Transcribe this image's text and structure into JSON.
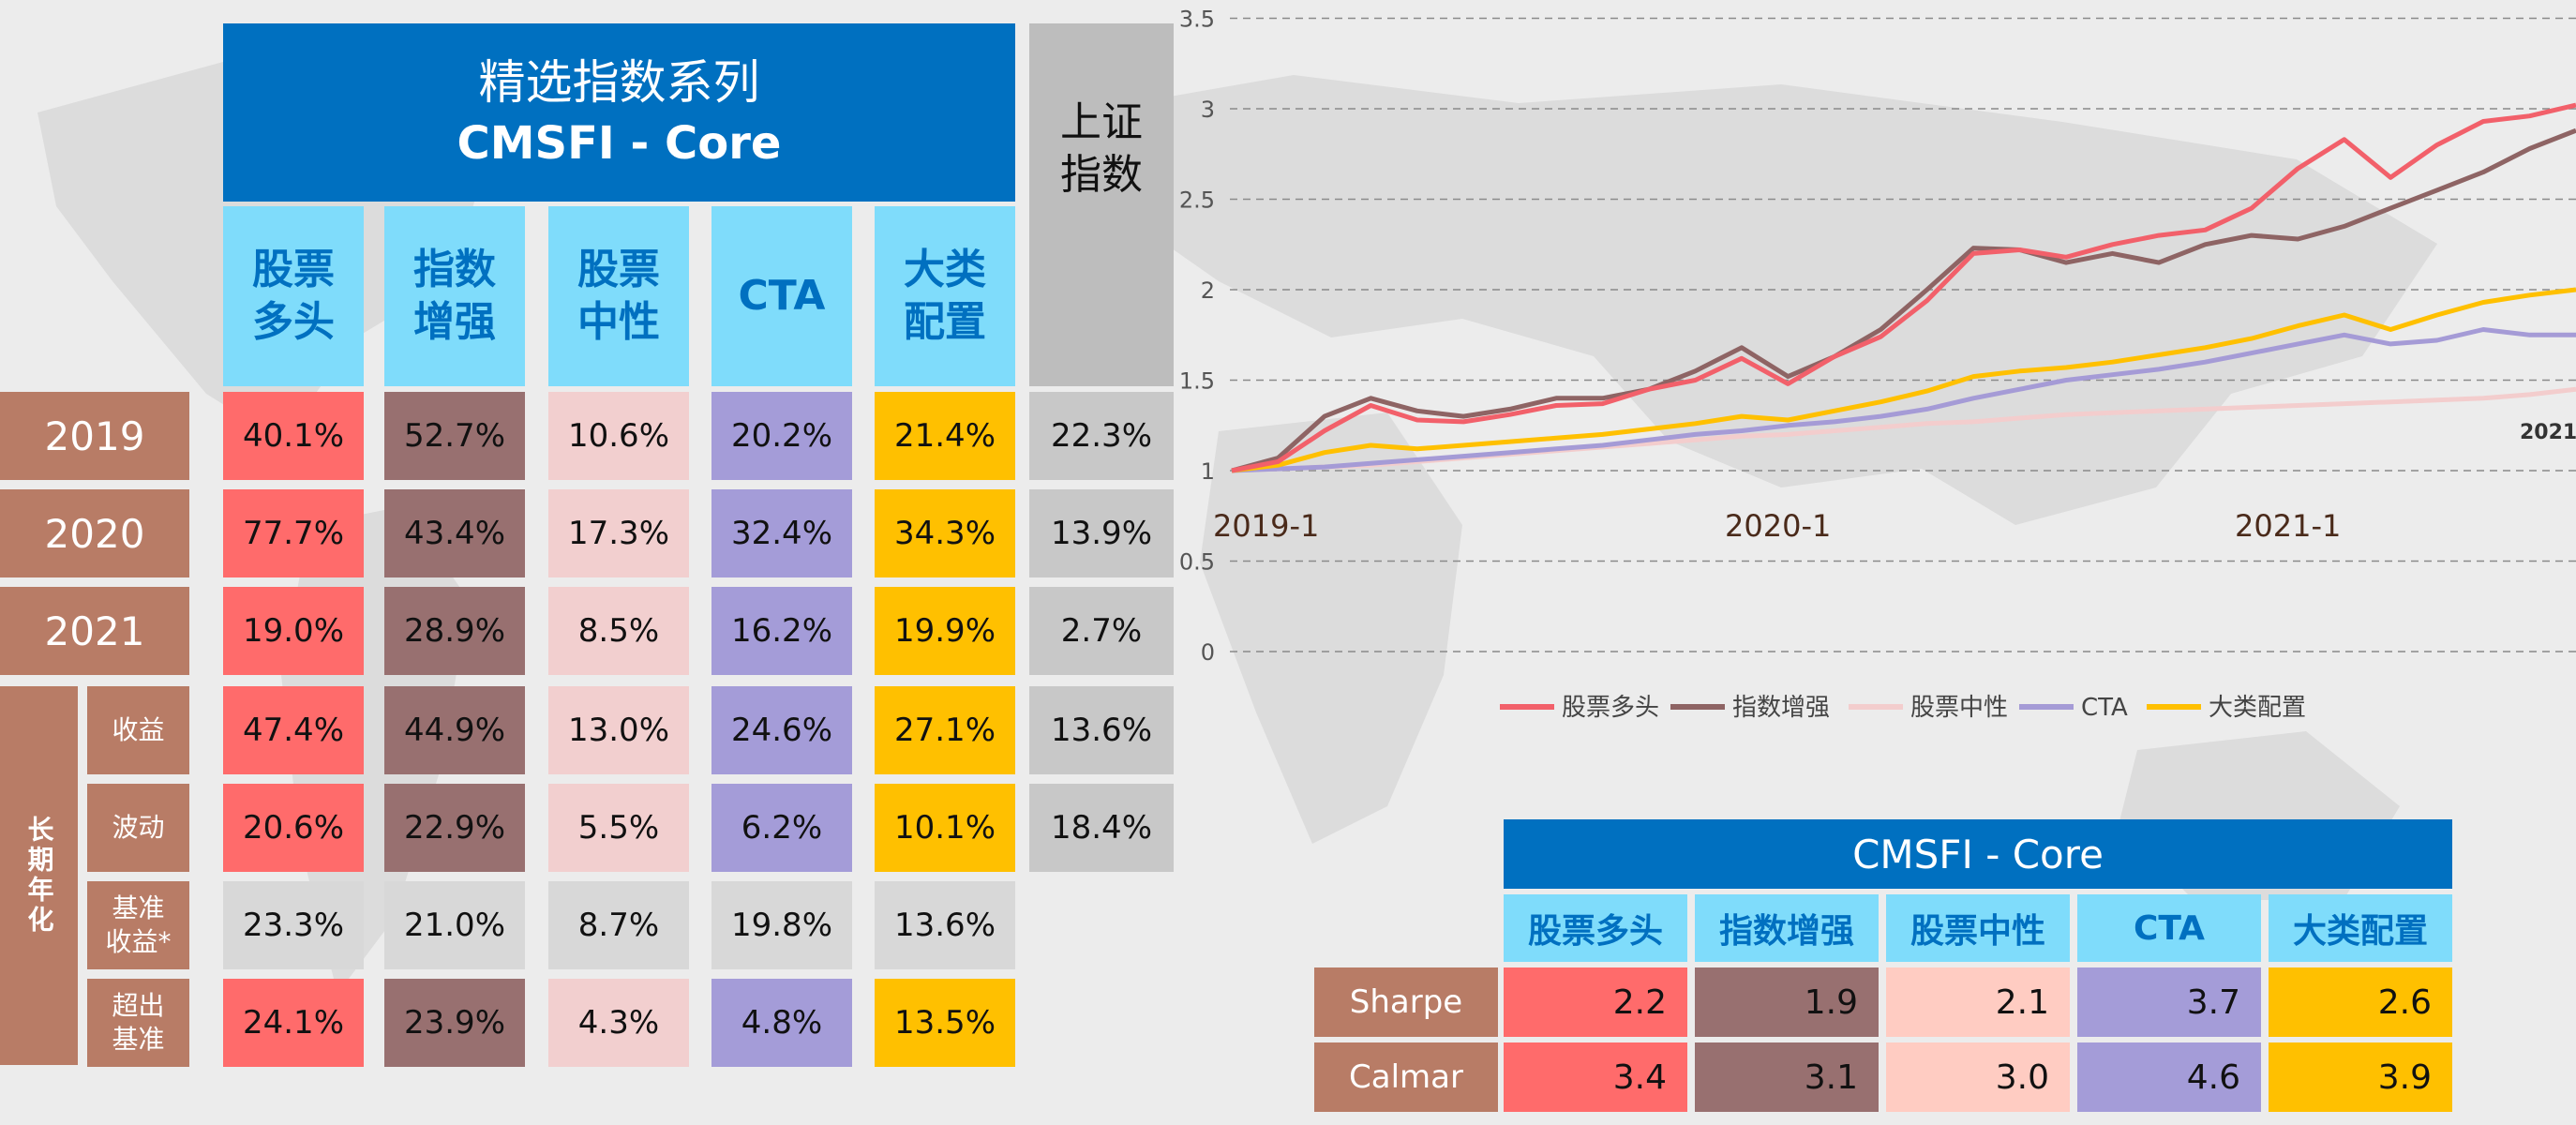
{
  "left_table": {
    "title_line1": "精选指数系列",
    "title_line2": "CMSFI - Core",
    "benchmark_header": [
      "上证",
      "指数"
    ],
    "col_headers": [
      [
        "股票",
        "多头"
      ],
      [
        "指数",
        "增强"
      ],
      [
        "股票",
        "中性"
      ],
      [
        "CTA"
      ],
      [
        "大类",
        "配置"
      ]
    ],
    "group_label": "长期年化",
    "rows": [
      {
        "label": [
          "2019"
        ],
        "values": [
          "40.1%",
          "52.7%",
          "10.6%",
          "20.2%",
          "21.4%"
        ],
        "benchmark": "22.3%"
      },
      {
        "label": [
          "2020"
        ],
        "values": [
          "77.7%",
          "43.4%",
          "17.3%",
          "32.4%",
          "34.3%"
        ],
        "benchmark": "13.9%"
      },
      {
        "label": [
          "2021"
        ],
        "values": [
          "19.0%",
          "28.9%",
          "8.5%",
          "16.2%",
          "19.9%"
        ],
        "benchmark": "2.7%"
      },
      {
        "label": [
          "收益"
        ],
        "values": [
          "47.4%",
          "44.9%",
          "13.0%",
          "24.6%",
          "27.1%"
        ],
        "benchmark": "13.6%"
      },
      {
        "label": [
          "波动"
        ],
        "values": [
          "20.6%",
          "22.9%",
          "5.5%",
          "6.2%",
          "10.1%"
        ],
        "benchmark": "18.4%"
      },
      {
        "label": [
          "基准",
          "收益*"
        ],
        "values": [
          "23.3%",
          "21.0%",
          "8.7%",
          "19.8%",
          "13.6%"
        ],
        "benchmark": ""
      },
      {
        "label": [
          "超出",
          "基准"
        ],
        "values": [
          "24.1%",
          "23.9%",
          "4.3%",
          "4.8%",
          "13.5%"
        ],
        "benchmark": ""
      }
    ]
  },
  "chart_data": {
    "type": "line",
    "title": "",
    "xlabel": "",
    "ylabel": "",
    "ylim": [
      0,
      3.5
    ],
    "yticks": [
      "0",
      "0.5",
      "1",
      "1.5",
      "2",
      "2.5",
      "3",
      "3.5"
    ],
    "x_tick_labels": [
      "2019-1",
      "2020-1",
      "2021-1",
      "2021"
    ],
    "x": [
      0,
      1,
      2,
      3,
      4,
      5,
      6,
      7,
      8,
      9,
      10,
      11,
      12,
      13,
      14,
      15,
      16,
      17,
      18,
      19,
      20,
      21,
      22,
      23,
      24,
      25,
      26,
      27,
      28,
      29
    ],
    "grid": "horizontal dashed",
    "legend_position": "bottom",
    "series": [
      {
        "name": "股票多头",
        "color": "#f2606a",
        "values": [
          1.0,
          1.05,
          1.22,
          1.36,
          1.28,
          1.27,
          1.31,
          1.36,
          1.37,
          1.45,
          1.5,
          1.62,
          1.48,
          1.63,
          1.74,
          1.94,
          2.2,
          2.22,
          2.18,
          2.25,
          2.3,
          2.33,
          2.45,
          2.67,
          2.83,
          2.62,
          2.8,
          2.93,
          2.96,
          3.02
        ]
      },
      {
        "name": "指数增强",
        "color": "#8e6464",
        "values": [
          1.0,
          1.07,
          1.3,
          1.4,
          1.33,
          1.3,
          1.34,
          1.4,
          1.4,
          1.45,
          1.55,
          1.68,
          1.52,
          1.63,
          1.78,
          2.0,
          2.23,
          2.22,
          2.15,
          2.2,
          2.15,
          2.25,
          2.3,
          2.28,
          2.35,
          2.45,
          2.55,
          2.65,
          2.78,
          2.88
        ]
      },
      {
        "name": "股票中性",
        "color": "#f3cdcd",
        "values": [
          1.0,
          1.01,
          1.02,
          1.03,
          1.05,
          1.07,
          1.09,
          1.11,
          1.13,
          1.15,
          1.17,
          1.19,
          1.2,
          1.22,
          1.24,
          1.26,
          1.27,
          1.29,
          1.31,
          1.32,
          1.33,
          1.34,
          1.35,
          1.36,
          1.37,
          1.38,
          1.39,
          1.4,
          1.42,
          1.45
        ]
      },
      {
        "name": "CTA",
        "color": "#a59bd6",
        "values": [
          1.0,
          1.01,
          1.02,
          1.04,
          1.06,
          1.08,
          1.1,
          1.12,
          1.14,
          1.17,
          1.2,
          1.22,
          1.25,
          1.27,
          1.3,
          1.34,
          1.4,
          1.45,
          1.5,
          1.53,
          1.56,
          1.6,
          1.65,
          1.7,
          1.75,
          1.7,
          1.72,
          1.78,
          1.75,
          1.75
        ]
      },
      {
        "name": "大类配置",
        "color": "#ffc000",
        "values": [
          1.0,
          1.03,
          1.1,
          1.14,
          1.12,
          1.14,
          1.16,
          1.18,
          1.2,
          1.23,
          1.26,
          1.3,
          1.28,
          1.33,
          1.38,
          1.44,
          1.52,
          1.55,
          1.57,
          1.6,
          1.64,
          1.68,
          1.73,
          1.8,
          1.86,
          1.78,
          1.86,
          1.93,
          1.97,
          2.0
        ]
      }
    ]
  },
  "bottom_table": {
    "title": "CMSFI - Core",
    "headers": [
      "股票多头",
      "指数增强",
      "股票中性",
      "CTA",
      "大类配置"
    ],
    "rows": [
      {
        "label": "Sharpe",
        "values": [
          "2.2",
          "1.9",
          "2.1",
          "3.7",
          "2.6"
        ]
      },
      {
        "label": "Calmar",
        "values": [
          "3.4",
          "3.1",
          "3.0",
          "4.6",
          "3.9"
        ]
      }
    ]
  }
}
